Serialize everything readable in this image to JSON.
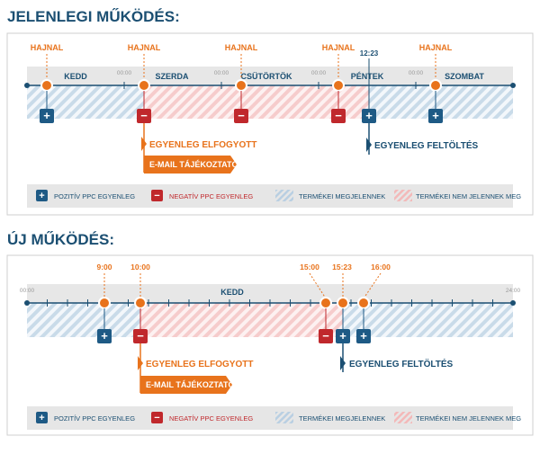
{
  "colors": {
    "title": "#1b4f72",
    "orange": "#e8731c",
    "red": "#c0282c",
    "blue": "#1e5a85",
    "navy": "#1b4f72",
    "grey_band": "#e7e7e7",
    "hatch_blue": "#c9dbe9",
    "hatch_red": "#f6cccc",
    "legend_bg": "#e6e6e6"
  },
  "current": {
    "title": "JELENLEGI MŰKÖDÉS:",
    "days": [
      "KEDD",
      "SZERDA",
      "CSÜTÖRTÖK",
      "PÉNTEK",
      "SZOMBAT"
    ],
    "midnight_label": "00:00",
    "markers": [
      {
        "label": "HAJNAL",
        "sign": "+",
        "type": "positive"
      },
      {
        "label": "HAJNAL",
        "sign": "−",
        "type": "negative"
      },
      {
        "label": "HAJNAL",
        "sign": "−",
        "type": "negative"
      },
      {
        "label": "HAJNAL",
        "sign": "−",
        "type": "negative"
      },
      {
        "label": "12:23",
        "sign": "+",
        "type": "positive"
      },
      {
        "label": "HAJNAL",
        "sign": "+",
        "type": "positive"
      }
    ],
    "callout_out": "EGYENLEG ELFOGYOTT",
    "callout_email": "E-MAIL TÁJÉKOZTATÓ",
    "callout_in": "EGYENLEG FELTÖLTÉS"
  },
  "new": {
    "title": "ÚJ MŰKÖDÉS:",
    "day": "KEDD",
    "start_label": "00:00",
    "end_label": "24:00",
    "markers": [
      {
        "label": "9:00",
        "sign": "+",
        "type": "positive"
      },
      {
        "label": "10:00",
        "sign": "−",
        "type": "negative"
      },
      {
        "label": "15:00",
        "sign": "−",
        "type": "negative"
      },
      {
        "label": "15:23",
        "sign": "+",
        "type": "positive"
      },
      {
        "label": "16:00",
        "sign": "+",
        "type": "positive"
      }
    ],
    "callout_out": "EGYENLEG ELFOGYOTT",
    "callout_email": "E-MAIL TÁJÉKOZTATÓ",
    "callout_in": "EGYENLEG FELTÖLTÉS"
  },
  "legend": {
    "positive": "POZITÍV PPC EGYENLEG",
    "negative": "NEGATÍV PPC EGYENLEG",
    "visible": "TERMÉKEI MEGJELENNEK",
    "hidden": "TERMÉKEI NEM JELENNEK MEG"
  }
}
